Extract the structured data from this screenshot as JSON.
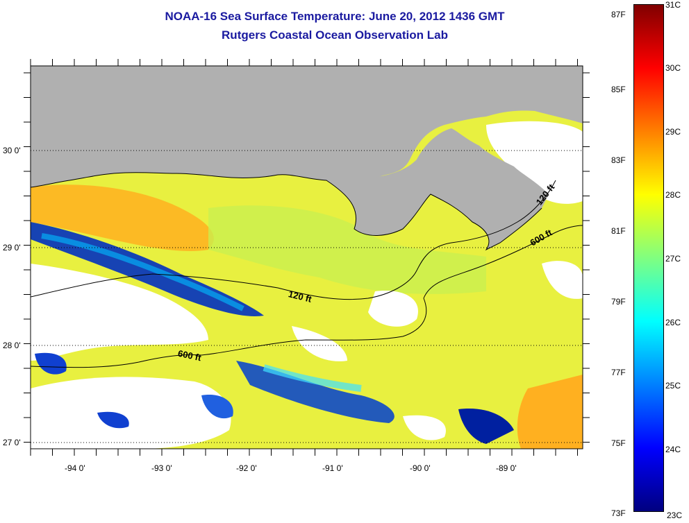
{
  "title": {
    "line1": "NOAA-16 Sea Surface Temperature:  June 20, 2012 1436 GMT",
    "line2": "Rutgers Coastal Ocean Observation Lab"
  },
  "map": {
    "lat_labels": [
      "30 0'",
      "29 0'",
      "28 0'",
      "27 0'"
    ],
    "lon_labels": [
      "-94 0'",
      "-93 0'",
      "-92 0'",
      "-91 0'",
      "-90 0'",
      "-89 0'"
    ],
    "contour_labels": [
      "120 ft",
      "120 ft",
      "600 ft",
      "600 ft"
    ],
    "colors": {
      "land": "#b0b0b0",
      "cloud": "#ffffff",
      "border": "#000000"
    }
  },
  "colorbar": {
    "fahrenheit": [
      "87F",
      "85F",
      "83F",
      "81F",
      "79F",
      "77F",
      "75F",
      "73F"
    ],
    "celsius": [
      "31C",
      "30C",
      "29C",
      "28C",
      "27C",
      "26C",
      "25C",
      "24C",
      "23C"
    ],
    "gradient": [
      "#800000",
      "#ff0000",
      "#ff8000",
      "#ffff00",
      "#80ff80",
      "#00ffff",
      "#0080ff",
      "#0000ff",
      "#000080"
    ]
  }
}
